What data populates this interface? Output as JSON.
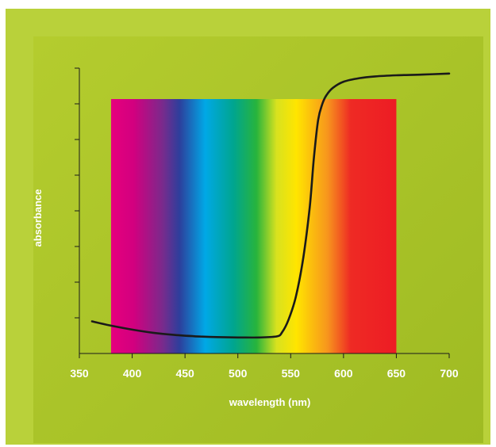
{
  "chart_data": {
    "type": "line",
    "title": "",
    "xlabel": "wavelength (nm)",
    "ylabel": "absorbance",
    "xlim": [
      350,
      700
    ],
    "ylim": [
      0,
      8
    ],
    "x_ticks": [
      350,
      400,
      450,
      500,
      550,
      600,
      650,
      700
    ],
    "y_ticks": [
      1,
      2,
      3,
      4,
      5,
      6,
      7,
      8
    ],
    "y_tick_labels_shown": false,
    "spectrum_band": {
      "start": 380,
      "end": 650
    },
    "grid": false,
    "series": [
      {
        "color": "#1a1a1a",
        "x": [
          362,
          380,
          400,
          420,
          440,
          460,
          480,
          500,
          520,
          537,
          542,
          548,
          555,
          562,
          568,
          572,
          576,
          580,
          584,
          590,
          600,
          615,
          630,
          650,
          675,
          700
        ],
        "y": [
          0.9,
          0.78,
          0.67,
          0.58,
          0.52,
          0.48,
          0.46,
          0.45,
          0.45,
          0.48,
          0.6,
          0.95,
          1.6,
          2.7,
          4.1,
          5.5,
          6.55,
          7.0,
          7.25,
          7.45,
          7.62,
          7.72,
          7.77,
          7.8,
          7.82,
          7.85
        ]
      }
    ]
  }
}
